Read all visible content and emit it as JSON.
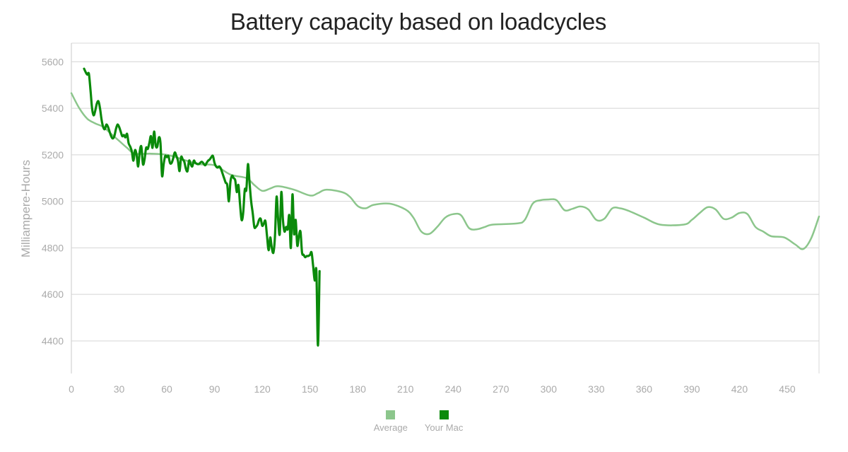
{
  "chart_data": {
    "type": "line",
    "title": "Battery capacity based on loadcycles",
    "xlabel": "",
    "ylabel": "Milliampere-Hours",
    "xlim": [
      0,
      470
    ],
    "ylim": [
      4260,
      5680
    ],
    "x_ticks": [
      0,
      30,
      60,
      90,
      120,
      150,
      180,
      210,
      240,
      270,
      300,
      330,
      360,
      390,
      420,
      450
    ],
    "y_ticks": [
      4400,
      4600,
      4800,
      5000,
      5200,
      5400,
      5600
    ],
    "grid": true,
    "legend_position": "bottom",
    "series": [
      {
        "name": "Average",
        "color": "#8cc68c",
        "points": [
          [
            0,
            5465
          ],
          [
            5,
            5400
          ],
          [
            10,
            5355
          ],
          [
            15,
            5335
          ],
          [
            20,
            5320
          ],
          [
            25,
            5290
          ],
          [
            30,
            5260
          ],
          [
            35,
            5230
          ],
          [
            40,
            5205
          ],
          [
            50,
            5205
          ],
          [
            60,
            5200
          ],
          [
            70,
            5180
          ],
          [
            80,
            5160
          ],
          [
            90,
            5155
          ],
          [
            100,
            5115
          ],
          [
            110,
            5100
          ],
          [
            115,
            5070
          ],
          [
            120,
            5045
          ],
          [
            125,
            5055
          ],
          [
            130,
            5065
          ],
          [
            140,
            5050
          ],
          [
            150,
            5025
          ],
          [
            155,
            5035
          ],
          [
            160,
            5050
          ],
          [
            170,
            5040
          ],
          [
            175,
            5020
          ],
          [
            180,
            4980
          ],
          [
            185,
            4970
          ],
          [
            190,
            4985
          ],
          [
            200,
            4990
          ],
          [
            210,
            4965
          ],
          [
            215,
            4930
          ],
          [
            220,
            4870
          ],
          [
            225,
            4860
          ],
          [
            230,
            4890
          ],
          [
            235,
            4930
          ],
          [
            240,
            4945
          ],
          [
            245,
            4940
          ],
          [
            250,
            4885
          ],
          [
            255,
            4880
          ],
          [
            260,
            4890
          ],
          [
            265,
            4900
          ],
          [
            280,
            4905
          ],
          [
            285,
            4920
          ],
          [
            290,
            4990
          ],
          [
            295,
            5005
          ],
          [
            300,
            5008
          ],
          [
            305,
            5005
          ],
          [
            310,
            4962
          ],
          [
            315,
            4968
          ],
          [
            320,
            4978
          ],
          [
            325,
            4965
          ],
          [
            330,
            4920
          ],
          [
            335,
            4925
          ],
          [
            340,
            4970
          ],
          [
            345,
            4970
          ],
          [
            350,
            4960
          ],
          [
            360,
            4930
          ],
          [
            370,
            4900
          ],
          [
            385,
            4900
          ],
          [
            390,
            4920
          ],
          [
            395,
            4950
          ],
          [
            400,
            4975
          ],
          [
            405,
            4965
          ],
          [
            410,
            4925
          ],
          [
            415,
            4930
          ],
          [
            420,
            4950
          ],
          [
            425,
            4945
          ],
          [
            430,
            4890
          ],
          [
            435,
            4870
          ],
          [
            440,
            4850
          ],
          [
            448,
            4845
          ],
          [
            455,
            4815
          ],
          [
            460,
            4795
          ],
          [
            465,
            4840
          ],
          [
            470,
            4935
          ]
        ]
      },
      {
        "name": "Your Mac",
        "color": "#0a8a0a",
        "points": [
          [
            8,
            5570
          ],
          [
            9,
            5555
          ],
          [
            10,
            5545
          ],
          [
            11,
            5548
          ],
          [
            12,
            5480
          ],
          [
            13,
            5400
          ],
          [
            14,
            5370
          ],
          [
            15,
            5390
          ],
          [
            16,
            5420
          ],
          [
            17,
            5430
          ],
          [
            18,
            5400
          ],
          [
            19,
            5350
          ],
          [
            20,
            5320
          ],
          [
            21,
            5310
          ],
          [
            22,
            5330
          ],
          [
            23,
            5320
          ],
          [
            24,
            5300
          ],
          [
            25,
            5280
          ],
          [
            26,
            5270
          ],
          [
            27,
            5280
          ],
          [
            28,
            5310
          ],
          [
            29,
            5330
          ],
          [
            30,
            5320
          ],
          [
            31,
            5300
          ],
          [
            32,
            5280
          ],
          [
            33,
            5285
          ],
          [
            34,
            5275
          ],
          [
            35,
            5290
          ],
          [
            36,
            5250
          ],
          [
            37,
            5235
          ],
          [
            38,
            5215
          ],
          [
            39,
            5175
          ],
          [
            40,
            5220
          ],
          [
            41,
            5200
          ],
          [
            42,
            5150
          ],
          [
            43,
            5215
          ],
          [
            44,
            5235
          ],
          [
            45,
            5160
          ],
          [
            46,
            5180
          ],
          [
            47,
            5230
          ],
          [
            48,
            5225
          ],
          [
            49,
            5250
          ],
          [
            50,
            5280
          ],
          [
            51,
            5230
          ],
          [
            52,
            5300
          ],
          [
            53,
            5240
          ],
          [
            54,
            5235
          ],
          [
            55,
            5275
          ],
          [
            56,
            5250
          ],
          [
            57,
            5110
          ],
          [
            58,
            5160
          ],
          [
            59,
            5195
          ],
          [
            60,
            5190
          ],
          [
            61,
            5195
          ],
          [
            62,
            5165
          ],
          [
            63,
            5165
          ],
          [
            64,
            5185
          ],
          [
            65,
            5210
          ],
          [
            66,
            5195
          ],
          [
            67,
            5175
          ],
          [
            68,
            5130
          ],
          [
            69,
            5190
          ],
          [
            70,
            5180
          ],
          [
            71,
            5170
          ],
          [
            72,
            5140
          ],
          [
            73,
            5130
          ],
          [
            74,
            5175
          ],
          [
            75,
            5160
          ],
          [
            76,
            5150
          ],
          [
            77,
            5175
          ],
          [
            78,
            5165
          ],
          [
            80,
            5160
          ],
          [
            82,
            5170
          ],
          [
            84,
            5155
          ],
          [
            85,
            5165
          ],
          [
            86,
            5175
          ],
          [
            87,
            5180
          ],
          [
            88,
            5190
          ],
          [
            89,
            5195
          ],
          [
            90,
            5165
          ],
          [
            91,
            5150
          ],
          [
            92,
            5145
          ],
          [
            93,
            5150
          ],
          [
            94,
            5140
          ],
          [
            95,
            5120
          ],
          [
            96,
            5100
          ],
          [
            97,
            5080
          ],
          [
            98,
            5070
          ],
          [
            99,
            5000
          ],
          [
            100,
            5085
          ],
          [
            101,
            5110
          ],
          [
            102,
            5100
          ],
          [
            103,
            5090
          ],
          [
            104,
            5040
          ],
          [
            105,
            5070
          ],
          [
            106,
            4990
          ],
          [
            107,
            4920
          ],
          [
            108,
            4950
          ],
          [
            109,
            5050
          ],
          [
            110,
            5050
          ],
          [
            111,
            5160
          ],
          [
            112,
            5080
          ],
          [
            113,
            5000
          ],
          [
            114,
            4950
          ],
          [
            115,
            4890
          ],
          [
            116,
            4890
          ],
          [
            117,
            4900
          ],
          [
            118,
            4920
          ],
          [
            119,
            4925
          ],
          [
            120,
            4895
          ],
          [
            121,
            4905
          ],
          [
            122,
            4915
          ],
          [
            123,
            4850
          ],
          [
            124,
            4790
          ],
          [
            125,
            4845
          ],
          [
            126,
            4800
          ],
          [
            127,
            4780
          ],
          [
            128,
            4850
          ],
          [
            129,
            5020
          ],
          [
            130,
            4920
          ],
          [
            131,
            4860
          ],
          [
            132,
            5040
          ],
          [
            133,
            4920
          ],
          [
            134,
            4870
          ],
          [
            135,
            4890
          ],
          [
            136,
            4880
          ],
          [
            137,
            4940
          ],
          [
            138,
            4800
          ],
          [
            139,
            5030
          ],
          [
            140,
            4860
          ],
          [
            141,
            4920
          ],
          [
            142,
            4810
          ],
          [
            143,
            4850
          ],
          [
            144,
            4870
          ],
          [
            145,
            4780
          ],
          [
            146,
            4770
          ],
          [
            147,
            4760
          ],
          [
            148,
            4765
          ],
          [
            149,
            4765
          ],
          [
            150,
            4770
          ],
          [
            151,
            4780
          ],
          [
            152,
            4720
          ],
          [
            153,
            4660
          ],
          [
            154,
            4700
          ],
          [
            155,
            4380
          ],
          [
            156,
            4700
          ]
        ]
      }
    ]
  }
}
